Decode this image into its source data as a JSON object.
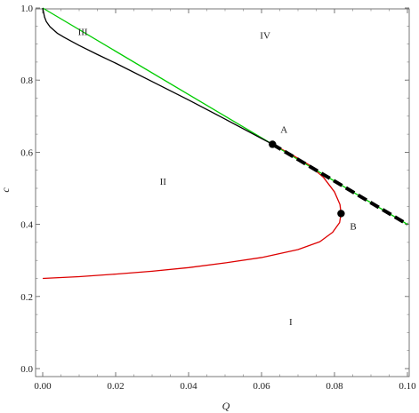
{
  "chart_data": {
    "type": "line",
    "title": "",
    "xlabel": "Q",
    "ylabel": "c",
    "xlim": [
      0.0,
      0.1
    ],
    "ylim": [
      0.0,
      1.0
    ],
    "xticks": [
      {
        "value": 0.0,
        "label": "0.00"
      },
      {
        "value": 0.02,
        "label": "0.02"
      },
      {
        "value": 0.04,
        "label": "0.04"
      },
      {
        "value": 0.06,
        "label": "0.06"
      },
      {
        "value": 0.08,
        "label": "0.08"
      },
      {
        "value": 0.1,
        "label": "0.10"
      }
    ],
    "yticks": [
      {
        "value": 0.0,
        "label": "0.0"
      },
      {
        "value": 0.2,
        "label": "0.2"
      },
      {
        "value": 0.4,
        "label": "0.4"
      },
      {
        "value": 0.6,
        "label": "0.6"
      },
      {
        "value": 0.8,
        "label": "0.8"
      },
      {
        "value": 1.0,
        "label": "1.0"
      }
    ],
    "grid": false,
    "series": [
      {
        "color": "#00cc00",
        "style": "solid",
        "points": [
          [
            0.0,
            1.0
          ],
          [
            0.063,
            0.622
          ],
          [
            0.1,
            0.4
          ]
        ]
      },
      {
        "color": "#000000",
        "style": "solid",
        "points": [
          [
            0.0,
            1.0
          ],
          [
            0.0005,
            0.975
          ],
          [
            0.001,
            0.962
          ],
          [
            0.002,
            0.948
          ],
          [
            0.004,
            0.93
          ],
          [
            0.006,
            0.918
          ],
          [
            0.01,
            0.896
          ],
          [
            0.015,
            0.871
          ],
          [
            0.02,
            0.847
          ],
          [
            0.03,
            0.796
          ],
          [
            0.04,
            0.745
          ],
          [
            0.05,
            0.692
          ],
          [
            0.06,
            0.638
          ],
          [
            0.063,
            0.622
          ]
        ]
      },
      {
        "color": "#dd0000",
        "style": "solid",
        "points": [
          [
            0.063,
            0.622
          ],
          [
            0.068,
            0.595
          ],
          [
            0.073,
            0.565
          ],
          [
            0.077,
            0.53
          ],
          [
            0.08,
            0.49
          ],
          [
            0.0815,
            0.455
          ],
          [
            0.0818,
            0.43
          ],
          [
            0.0814,
            0.405
          ],
          [
            0.0795,
            0.378
          ],
          [
            0.076,
            0.352
          ],
          [
            0.07,
            0.33
          ],
          [
            0.06,
            0.308
          ],
          [
            0.05,
            0.293
          ],
          [
            0.04,
            0.28
          ],
          [
            0.03,
            0.27
          ],
          [
            0.02,
            0.262
          ],
          [
            0.01,
            0.255
          ],
          [
            0.0,
            0.25
          ]
        ]
      },
      {
        "color": "#000000",
        "style": "dashed",
        "points": [
          [
            0.063,
            0.622
          ],
          [
            0.1,
            0.4
          ]
        ]
      }
    ],
    "markers": [
      {
        "label": "A",
        "x": 0.063,
        "y": 0.622
      },
      {
        "label": "B",
        "x": 0.0818,
        "y": 0.43
      }
    ],
    "regions": [
      {
        "label": "I",
        "x": 0.068,
        "y": 0.13
      },
      {
        "label": "II",
        "x": 0.033,
        "y": 0.52
      },
      {
        "label": "III",
        "x": 0.011,
        "y": 0.935
      },
      {
        "label": "IV",
        "x": 0.061,
        "y": 0.925
      }
    ]
  }
}
